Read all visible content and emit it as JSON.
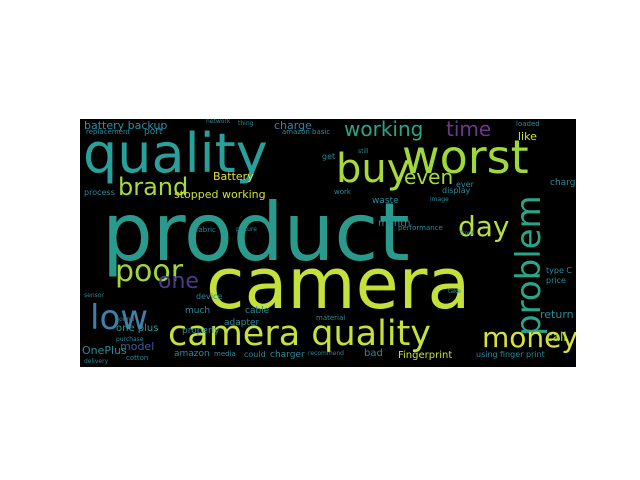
{
  "wordcloud": {
    "background": "#000000",
    "words": [
      {
        "text": "product",
        "color": "#2a9a8c"
      },
      {
        "text": "camera",
        "color": "#c4e03a"
      },
      {
        "text": "quality",
        "color": "#2aa09a"
      },
      {
        "text": "worst",
        "color": "#9fd83a"
      },
      {
        "text": "camera quality",
        "color": "#c8e03a"
      },
      {
        "text": "buy",
        "color": "#a6db3a"
      },
      {
        "text": "poor",
        "color": "#9fd83a"
      },
      {
        "text": "low",
        "color": "#3f7fa8"
      },
      {
        "text": "problem",
        "color": "#2aa58a"
      },
      {
        "text": "money",
        "color": "#d8e23a"
      },
      {
        "text": "brand",
        "color": "#a6db3a"
      },
      {
        "text": "day",
        "color": "#b7e03a"
      },
      {
        "text": "working",
        "color": "#2aa58a"
      },
      {
        "text": "time",
        "color": "#6a3a8a"
      },
      {
        "text": "one",
        "color": "#4a3a8a"
      },
      {
        "text": "even",
        "color": "#a8db3a"
      },
      {
        "text": "battery backup",
        "color": "#2a90a0"
      },
      {
        "text": "stopped working",
        "color": "#d0e23a"
      },
      {
        "text": "Battery",
        "color": "#e0e23a"
      },
      {
        "text": "charge",
        "color": "#3a7fa8"
      },
      {
        "text": "model",
        "color": "#3a5a9a"
      },
      {
        "text": "one plus",
        "color": "#2a9a8c"
      },
      {
        "text": "amazon",
        "color": "#2a8a9a"
      },
      {
        "text": "properly",
        "color": "#2a8a9a"
      },
      {
        "text": "OnePlus",
        "color": "#2a8a9a"
      },
      {
        "text": "cotton",
        "color": "#2a8a9a"
      },
      {
        "text": "charger",
        "color": "#2a8a9a"
      },
      {
        "text": "bad",
        "color": "#2a8a9a"
      },
      {
        "text": "Fingerprint",
        "color": "#c8e03a"
      },
      {
        "text": "call",
        "color": "#a8db3a"
      },
      {
        "text": "return",
        "color": "#2a8a9a"
      },
      {
        "text": "like",
        "color": "#d0e23a"
      },
      {
        "text": "month",
        "color": "#2a8a9a"
      },
      {
        "text": "price",
        "color": "#2a8a9a"
      },
      {
        "text": "charging",
        "color": "#2a8a9a"
      },
      {
        "text": "using",
        "color": "#2a8a9a"
      },
      {
        "text": "finger print",
        "color": "#2a8a9a"
      },
      {
        "text": "much",
        "color": "#2a8a9a"
      },
      {
        "text": "cable",
        "color": "#2a8a9a"
      },
      {
        "text": "adapter",
        "color": "#2a8a9a"
      },
      {
        "text": "device",
        "color": "#2a8a9a"
      },
      {
        "text": "process",
        "color": "#2a8a9a"
      },
      {
        "text": "port",
        "color": "#2a8a9a"
      },
      {
        "text": "replacement",
        "color": "#2a8a9a"
      },
      {
        "text": "waste",
        "color": "#2a8a9a"
      },
      {
        "text": "display",
        "color": "#2a8a9a"
      },
      {
        "text": "performance",
        "color": "#2a8a9a"
      },
      {
        "text": "amazon basic",
        "color": "#2a8a9a"
      },
      {
        "text": "type C",
        "color": "#2a8a9a"
      },
      {
        "text": "network",
        "color": "#2a8a9a"
      },
      {
        "text": "loaded",
        "color": "#2a8a9a"
      },
      {
        "text": "media",
        "color": "#2a8a9a"
      },
      {
        "text": "could",
        "color": "#2a8a9a"
      },
      {
        "text": "sound",
        "color": "#2a8a9a"
      },
      {
        "text": "delivery",
        "color": "#2a8a9a"
      },
      {
        "text": "sensor",
        "color": "#2a8a9a"
      },
      {
        "text": "purchase",
        "color": "#2a8a9a"
      },
      {
        "text": "picture",
        "color": "#2a8a9a"
      },
      {
        "text": "fabric",
        "color": "#2a8a9a"
      },
      {
        "text": "material",
        "color": "#2a8a9a"
      },
      {
        "text": "recommend",
        "color": "#2a8a9a"
      },
      {
        "text": "image",
        "color": "#2a8a9a"
      },
      {
        "text": "front",
        "color": "#2a8a9a"
      },
      {
        "text": "get",
        "color": "#2a8a9a"
      },
      {
        "text": "work",
        "color": "#2a8a9a"
      },
      {
        "text": "still",
        "color": "#2a8a9a"
      },
      {
        "text": "ever",
        "color": "#2a8a9a"
      },
      {
        "text": "take",
        "color": "#2a8a9a"
      },
      {
        "text": "thing",
        "color": "#2a8a9a"
      }
    ]
  }
}
